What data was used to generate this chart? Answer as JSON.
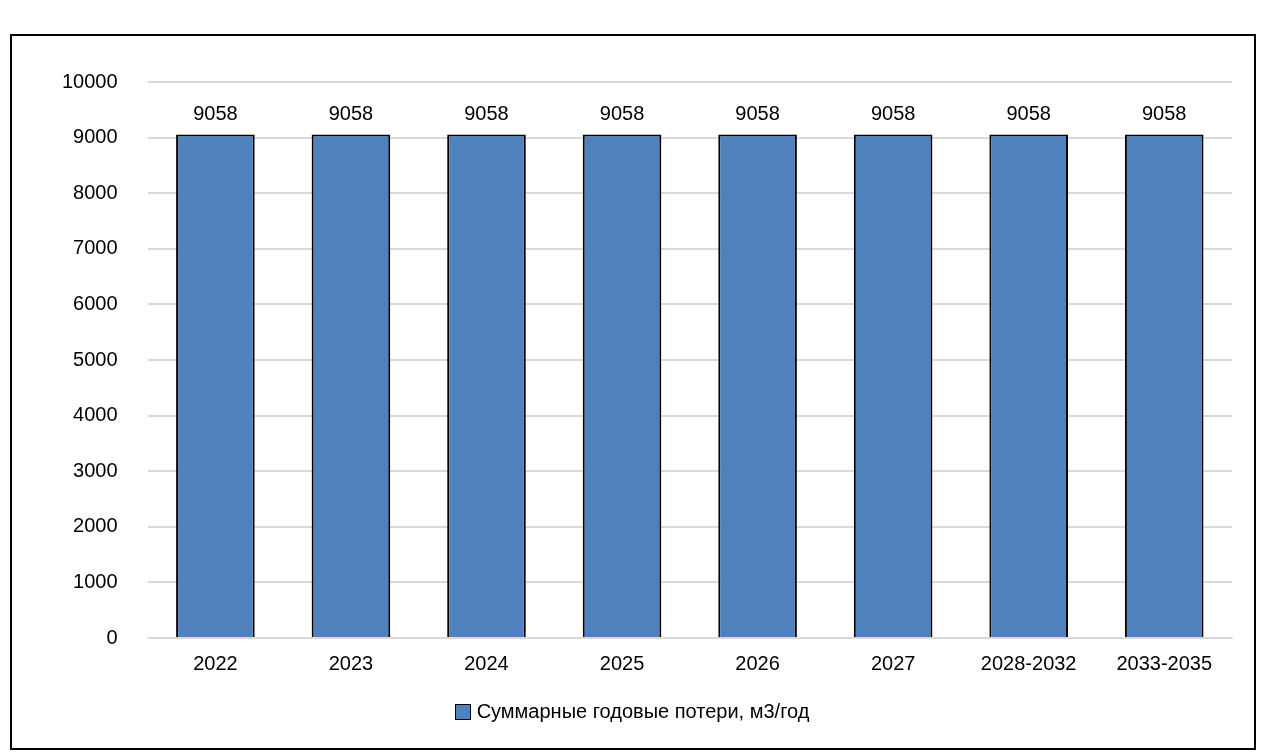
{
  "chart_data": {
    "type": "bar",
    "categories": [
      "2022",
      "2023",
      "2024",
      "2025",
      "2026",
      "2027",
      "2028-2032",
      "2033-2035"
    ],
    "series": [
      {
        "name": "Суммарные годовые потери, м3/год",
        "color": "#4f81bd",
        "values": [
          9058,
          9058,
          9058,
          9058,
          9058,
          9058,
          9058,
          9058
        ]
      }
    ],
    "ylim": [
      0,
      10000
    ],
    "yticks": [
      0,
      1000,
      2000,
      3000,
      4000,
      5000,
      6000,
      7000,
      8000,
      9000,
      10000
    ],
    "grid": "y",
    "legend": "bottom",
    "data_labels": true
  }
}
